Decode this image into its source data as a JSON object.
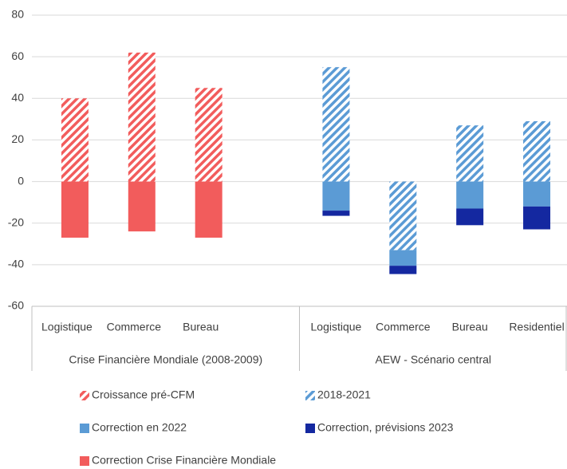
{
  "chart_data": {
    "type": "stacked-bar",
    "categories": [
      "Logistique",
      "Commerce",
      "Bureau",
      null,
      "Logistique",
      "Commerce",
      "Bureau",
      "Residentiel"
    ],
    "groups": [
      "Crise Financière Mondiale (2008-2009)",
      "AEW - Scénario central"
    ],
    "series": [
      {
        "name": "Croissance pré-CFM",
        "color": "#f25c5c",
        "pattern": "hatch",
        "values": [
          40,
          62,
          45,
          null,
          null,
          null,
          null,
          null
        ]
      },
      {
        "name": "2018-2021",
        "color": "#5b9bd5",
        "pattern": "hatch",
        "values": [
          null,
          null,
          null,
          null,
          55,
          -33,
          27,
          29
        ]
      },
      {
        "name": "Correction en 2022",
        "color": "#5b9bd5",
        "pattern": "solid",
        "values": [
          null,
          null,
          null,
          null,
          -14,
          -7.5,
          -13,
          -12
        ]
      },
      {
        "name": "Correction, prévisions 2023",
        "color": "#1428a0",
        "pattern": "solid",
        "values": [
          null,
          null,
          null,
          null,
          -2.5,
          -4,
          -8,
          -11
        ]
      },
      {
        "name": "Correction Crise Financière Mondiale",
        "color": "#f25c5c",
        "pattern": "solid",
        "values": [
          -27,
          -24,
          -27,
          null,
          null,
          null,
          null,
          null
        ]
      }
    ],
    "ylim": [
      -60,
      80
    ],
    "yticks": [
      -60,
      -40,
      -20,
      0,
      20,
      40,
      60,
      80
    ],
    "grid": true
  }
}
